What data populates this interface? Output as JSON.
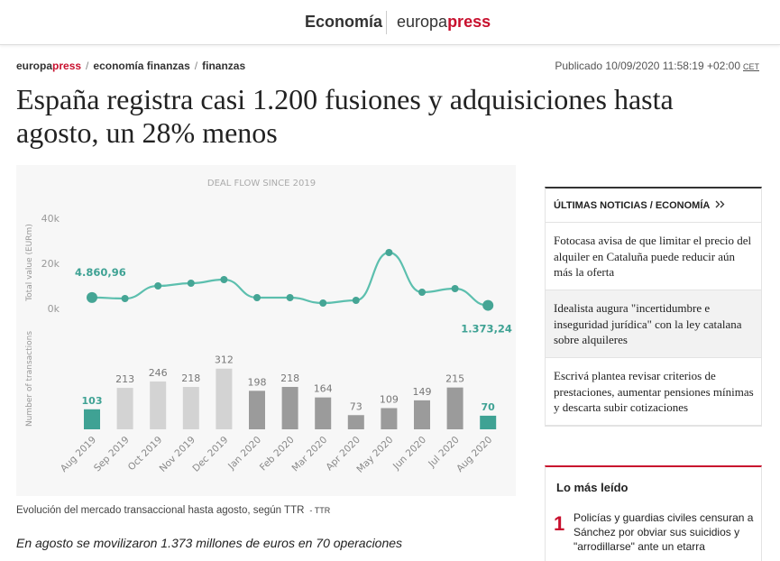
{
  "header": {
    "section": "Economía",
    "brand_part1": "europa",
    "brand_part2": "press"
  },
  "breadcrumb": {
    "brand_part1": "europa",
    "brand_part2": "press",
    "separator": "/",
    "items": [
      "economía finanzas",
      "finanzas"
    ]
  },
  "published": {
    "text": "Publicado 10/09/2020 11:58:19 +02:00",
    "tz": "CET"
  },
  "headline": "España registra casi 1.200 fusiones y adquisiciones hasta agosto, un 28% menos",
  "chart_data": {
    "type": "line",
    "title": "DEAL FLOW SINCE 2019",
    "ylabel": "Total value (EURm)",
    "y2label": "Number of transactions",
    "categories": [
      "Aug 2019",
      "Sep 2019",
      "Oct 2019",
      "Nov 2019",
      "Dec 2019",
      "Jan 2020",
      "Feb 2020",
      "Mar 2020",
      "Apr 2020",
      "May 2020",
      "Jun 2020",
      "Jul 2020",
      "Aug 2020"
    ],
    "ylim": [
      0,
      40000
    ],
    "yticks": [
      {
        "value": 0,
        "label": "0k"
      },
      {
        "value": 20000,
        "label": "20k"
      },
      {
        "value": 40000,
        "label": "40k"
      }
    ],
    "y2lim": [
      0,
      320
    ],
    "series": [
      {
        "type": "line",
        "color": "#5cbfae",
        "values": [
          4860.96,
          4400,
          10000,
          11200,
          12800,
          4800,
          4800,
          2400,
          3600,
          24800,
          7200,
          8800,
          1373.24
        ],
        "value_labels": [
          "4.860,96",
          null,
          null,
          null,
          null,
          null,
          null,
          null,
          null,
          null,
          null,
          null,
          "1.373,24"
        ]
      },
      {
        "type": "bar",
        "axis": "y2",
        "values": [
          103,
          213,
          246,
          218,
          312,
          198,
          218,
          164,
          73,
          109,
          149,
          215,
          70
        ],
        "colors": [
          "#3fa294",
          "#d3d3d3",
          "#d3d3d3",
          "#d3d3d3",
          "#d3d3d3",
          "#9b9b9b",
          "#9b9b9b",
          "#9b9b9b",
          "#9b9b9b",
          "#9b9b9b",
          "#9b9b9b",
          "#9b9b9b",
          "#3fa294"
        ]
      }
    ]
  },
  "caption": {
    "text": "Evolución del mercado transaccional hasta agosto, según TTR",
    "source": "- TTR"
  },
  "lead": "En agosto se movilizaron 1.373 millones de euros en 70 operaciones",
  "sidebar": {
    "latest": {
      "title": "ÚLTIMAS NOTICIAS / ECONOMÍA",
      "items": [
        "Fotocasa avisa de que limitar el precio del alquiler en Cataluña puede reducir aún más la oferta",
        "Idealista augura \"incertidumbre e inseguridad jurídica\" con la ley catalana sobre alquileres",
        "Escrivá plantea revisar criterios de prestaciones, aumentar pensiones mínimas y descarta subir cotizaciones"
      ]
    },
    "most_read": {
      "title": "Lo más leído",
      "items": [
        {
          "rank": 1,
          "text": "Policías y guardias civiles censuran a Sánchez por obviar sus suicidios y \"arrodillarse\" ante un etarra"
        }
      ]
    }
  }
}
